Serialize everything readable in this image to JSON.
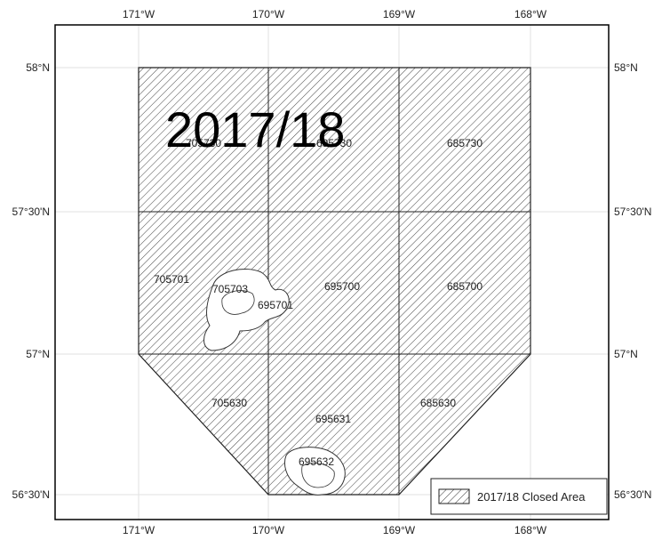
{
  "map": {
    "year_label": "2017/18",
    "longitude_ticks": [
      "171°W",
      "170°W",
      "169°W",
      "168°W"
    ],
    "latitude_ticks": [
      "58°N",
      "57°30'N",
      "57°N",
      "56°30'N"
    ],
    "cell_labels": [
      "705730",
      "695730",
      "685730",
      "705701",
      "705703",
      "695701",
      "695700",
      "685700",
      "705630",
      "695631",
      "685630",
      "695632"
    ],
    "legend": {
      "label": "2017/18 Closed Area"
    },
    "colors": {
      "frame": "#000000",
      "hatch": "#333333",
      "graticule": "#dddddd"
    }
  }
}
